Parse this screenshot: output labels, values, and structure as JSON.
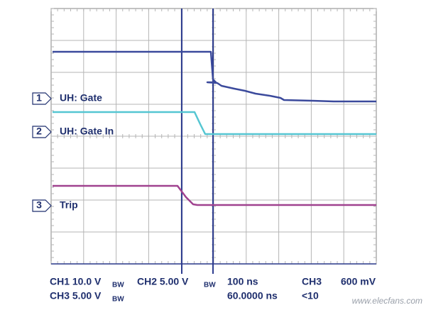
{
  "channels": [
    {
      "number": "1",
      "label": "UH: Gate"
    },
    {
      "number": "2",
      "label": "UH: Gate In"
    },
    {
      "number": "3",
      "label": "Trip"
    }
  ],
  "readout": {
    "row1": {
      "ch1": "CH1 10.0 V",
      "bw1": "BW",
      "ch2": "CH2  5.00 V",
      "bw2": "BW",
      "timebase": "100 ns",
      "ch3": "CH3",
      "level": "600 mV"
    },
    "row2": {
      "ch3": "CH3 5.00 V",
      "bw3": "BW",
      "position": "60.0000 ns",
      "rate": "<10"
    }
  },
  "watermark": "www.elecfans.com"
}
